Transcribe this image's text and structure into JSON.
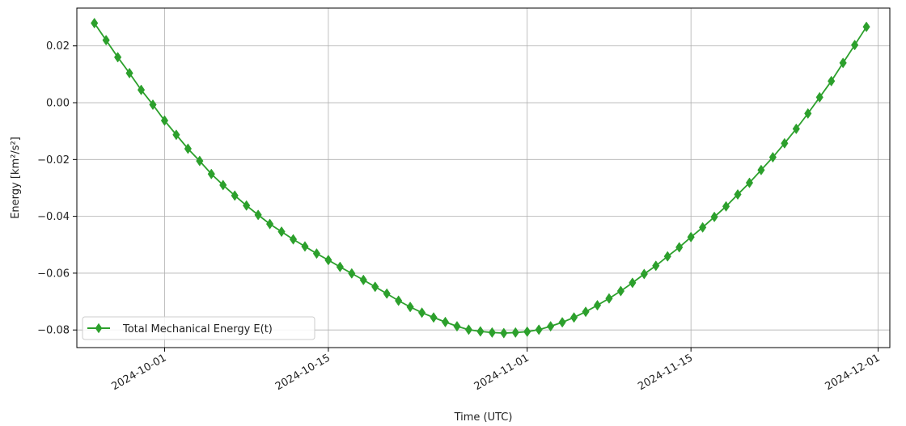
{
  "chart_data": {
    "type": "line",
    "title": "",
    "xlabel": "Time (UTC)",
    "ylabel": "Energy [km²/s²]",
    "x_type": "date",
    "xlim": [
      "2024-09-23T12:00",
      "2024-12-02T00:00"
    ],
    "ylim": [
      -0.0862,
      0.0333
    ],
    "x_ticks": [
      "2024-10-01",
      "2024-10-15",
      "2024-11-01",
      "2024-11-15",
      "2024-12-01"
    ],
    "y_ticks": [
      0.02,
      0.0,
      -0.02,
      -0.04,
      -0.06,
      -0.08
    ],
    "y_tick_labels": [
      "0.02",
      "0.00",
      "−0.02",
      "−0.04",
      "−0.06",
      "−0.08"
    ],
    "grid": true,
    "legend_position": "lower-left",
    "series": [
      {
        "name": "Total Mechanical Energy E(t)",
        "color": "#2ca02c",
        "marker": "diamond",
        "x": [
          "2024-09-25T00:00",
          "2024-09-26T00:00",
          "2024-09-27T00:00",
          "2024-09-28T00:00",
          "2024-09-29T00:00",
          "2024-09-30T00:00",
          "2024-10-01T00:00",
          "2024-10-02T00:00",
          "2024-10-03T00:00",
          "2024-10-04T00:00",
          "2024-10-05T00:00",
          "2024-10-06T00:00",
          "2024-10-07T00:00",
          "2024-10-08T00:00",
          "2024-10-09T00:00",
          "2024-10-10T00:00",
          "2024-10-11T00:00",
          "2024-10-12T00:00",
          "2024-10-13T00:00",
          "2024-10-14T00:00",
          "2024-10-15T00:00",
          "2024-10-16T00:00",
          "2024-10-17T00:00",
          "2024-10-18T00:00",
          "2024-10-19T00:00",
          "2024-10-20T00:00",
          "2024-10-21T00:00",
          "2024-10-22T00:00",
          "2024-10-23T00:00",
          "2024-10-24T00:00",
          "2024-10-25T00:00",
          "2024-10-26T00:00",
          "2024-10-27T00:00",
          "2024-10-28T00:00",
          "2024-10-29T00:00",
          "2024-10-30T00:00",
          "2024-10-31T00:00",
          "2024-11-01T00:00",
          "2024-11-02T00:00",
          "2024-11-03T00:00",
          "2024-11-04T00:00",
          "2024-11-05T00:00",
          "2024-11-06T00:00",
          "2024-11-07T00:00",
          "2024-11-08T00:00",
          "2024-11-09T00:00",
          "2024-11-10T00:00",
          "2024-11-11T00:00",
          "2024-11-12T00:00",
          "2024-11-13T00:00",
          "2024-11-14T00:00",
          "2024-11-15T00:00",
          "2024-11-16T00:00",
          "2024-11-17T00:00",
          "2024-11-18T00:00",
          "2024-11-19T00:00",
          "2024-11-20T00:00",
          "2024-11-21T00:00",
          "2024-11-22T00:00",
          "2024-11-23T00:00",
          "2024-11-24T00:00",
          "2024-11-25T00:00",
          "2024-11-26T00:00",
          "2024-11-27T00:00",
          "2024-11-28T00:00",
          "2024-11-29T00:00",
          "2024-11-30T00:00"
        ],
        "y": [
          0.028,
          0.022,
          0.016,
          0.0104,
          0.0045,
          -0.0007,
          -0.0063,
          -0.0113,
          -0.0162,
          -0.0205,
          -0.0251,
          -0.029,
          -0.0327,
          -0.0362,
          -0.0395,
          -0.0427,
          -0.0454,
          -0.0481,
          -0.0506,
          -0.0531,
          -0.0554,
          -0.0578,
          -0.0601,
          -0.0624,
          -0.0648,
          -0.0672,
          -0.0697,
          -0.0719,
          -0.0739,
          -0.0756,
          -0.0772,
          -0.0787,
          -0.0799,
          -0.0805,
          -0.0809,
          -0.0811,
          -0.0809,
          -0.0806,
          -0.0799,
          -0.0787,
          -0.0773,
          -0.0756,
          -0.0736,
          -0.0713,
          -0.0689,
          -0.0663,
          -0.0634,
          -0.0603,
          -0.0574,
          -0.0541,
          -0.0509,
          -0.0473,
          -0.0439,
          -0.0402,
          -0.0365,
          -0.0323,
          -0.0282,
          -0.0237,
          -0.0192,
          -0.0143,
          -0.0092,
          -0.0038,
          0.0019,
          0.0076,
          0.014,
          0.0203,
          0.0267
        ]
      }
    ]
  }
}
